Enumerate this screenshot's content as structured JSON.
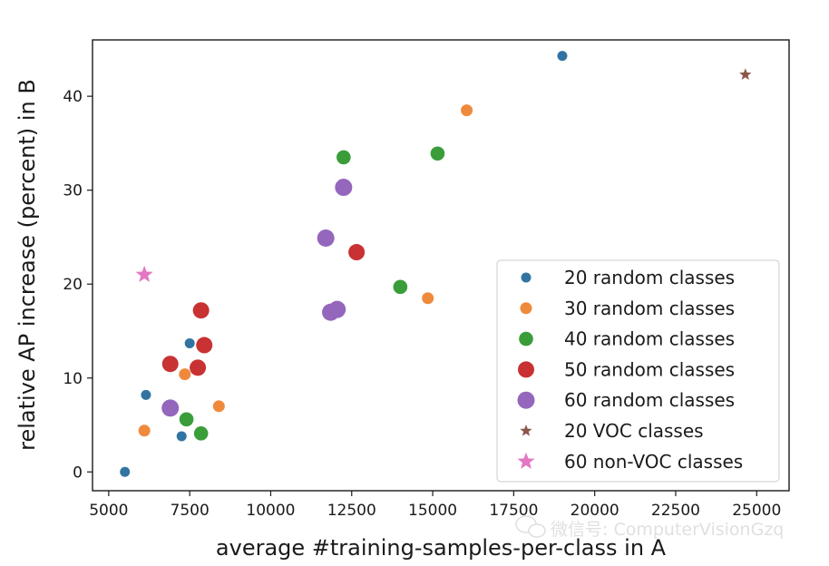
{
  "chart_data": {
    "type": "scatter",
    "title": "",
    "xlabel": "average #training-samples-per-class in A",
    "ylabel": "relative AP increase (percent) in B",
    "xlim": [
      4500,
      26000
    ],
    "ylim": [
      -2,
      46
    ],
    "xticks": [
      5000,
      7500,
      10000,
      12500,
      15000,
      17500,
      20000,
      22500,
      25000
    ],
    "yticks": [
      0,
      10,
      20,
      30,
      40
    ],
    "grid": false,
    "legend_position": "lower-right",
    "series": [
      {
        "name": "20 random classes",
        "color": "#3274a1",
        "marker": "circle",
        "size": "small",
        "points": [
          [
            5500,
            0
          ],
          [
            6150,
            8.2
          ],
          [
            7250,
            3.8
          ],
          [
            7500,
            13.7
          ],
          [
            19000,
            44.3
          ]
        ]
      },
      {
        "name": "30 random classes",
        "color": "#ef8a3c",
        "marker": "circle",
        "size": "small-medium",
        "points": [
          [
            6100,
            4.4
          ],
          [
            7350,
            10.4
          ],
          [
            8400,
            7.0
          ],
          [
            14850,
            18.5
          ],
          [
            16050,
            38.5
          ]
        ]
      },
      {
        "name": "40 random classes",
        "color": "#3a9d3a",
        "marker": "circle",
        "size": "medium",
        "points": [
          [
            7400,
            5.6
          ],
          [
            7850,
            4.1
          ],
          [
            12250,
            33.5
          ],
          [
            14000,
            19.7
          ],
          [
            15150,
            33.9
          ]
        ]
      },
      {
        "name": "50 random classes",
        "color": "#c83232",
        "marker": "circle",
        "size": "medium-large",
        "points": [
          [
            6900,
            11.5
          ],
          [
            7750,
            11.1
          ],
          [
            7850,
            17.2
          ],
          [
            7950,
            13.5
          ],
          [
            12650,
            23.4
          ]
        ]
      },
      {
        "name": "60 random classes",
        "color": "#9467bd",
        "marker": "circle",
        "size": "large",
        "points": [
          [
            6900,
            6.8
          ],
          [
            11700,
            24.9
          ],
          [
            11850,
            17.0
          ],
          [
            12050,
            17.3
          ],
          [
            12250,
            30.3
          ]
        ]
      },
      {
        "name": "20 VOC classes",
        "color": "#8c564b",
        "marker": "star",
        "size": "small",
        "points": [
          [
            24650,
            42.3
          ]
        ]
      },
      {
        "name": "60 non-VOC classes",
        "color": "#e377c2",
        "marker": "star",
        "size": "large",
        "points": [
          [
            6100,
            21.0
          ]
        ]
      }
    ]
  },
  "watermark": {
    "text": "微信号: ComputerVisionGzq",
    "icon": "wechat-icon"
  }
}
